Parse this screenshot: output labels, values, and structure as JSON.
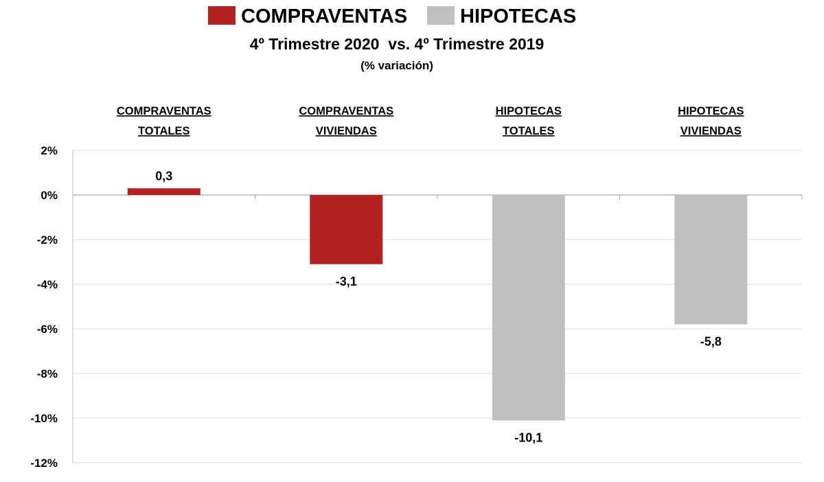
{
  "chart_data": {
    "type": "bar",
    "title": "4º Trimestre 2020  vs. 4º Trimestre 2019",
    "subtitle": "(% variación)",
    "legend": [
      {
        "name": "COMPRAVENTAS",
        "color": "#b22222"
      },
      {
        "name": "HIPOTECAS",
        "color": "#c0c0c0"
      }
    ],
    "legend_position": "top",
    "categories": [
      [
        "COMPRAVENTAS",
        "TOTALES"
      ],
      [
        "COMPRAVENTAS",
        "VIVIENDAS"
      ],
      [
        "HIPOTECAS",
        "TOTALES"
      ],
      [
        "HIPOTECAS",
        "VIVIENDAS"
      ]
    ],
    "values": [
      0.3,
      -3.1,
      -10.1,
      -5.8
    ],
    "value_labels": [
      "0,3",
      "-3,1",
      "-10,1",
      "-5,8"
    ],
    "bar_colors": [
      "#b22222",
      "#b22222",
      "#c0c0c0",
      "#c0c0c0"
    ],
    "ylim": [
      -12,
      2
    ],
    "yticks": [
      2,
      0,
      -2,
      -4,
      -6,
      -8,
      -10,
      -12
    ],
    "ytick_labels": [
      "2%",
      "0%",
      "-2%",
      "-4%",
      "-6%",
      "-8%",
      "-10%",
      "-12%"
    ],
    "grid": true,
    "xlabel": "",
    "ylabel": ""
  }
}
